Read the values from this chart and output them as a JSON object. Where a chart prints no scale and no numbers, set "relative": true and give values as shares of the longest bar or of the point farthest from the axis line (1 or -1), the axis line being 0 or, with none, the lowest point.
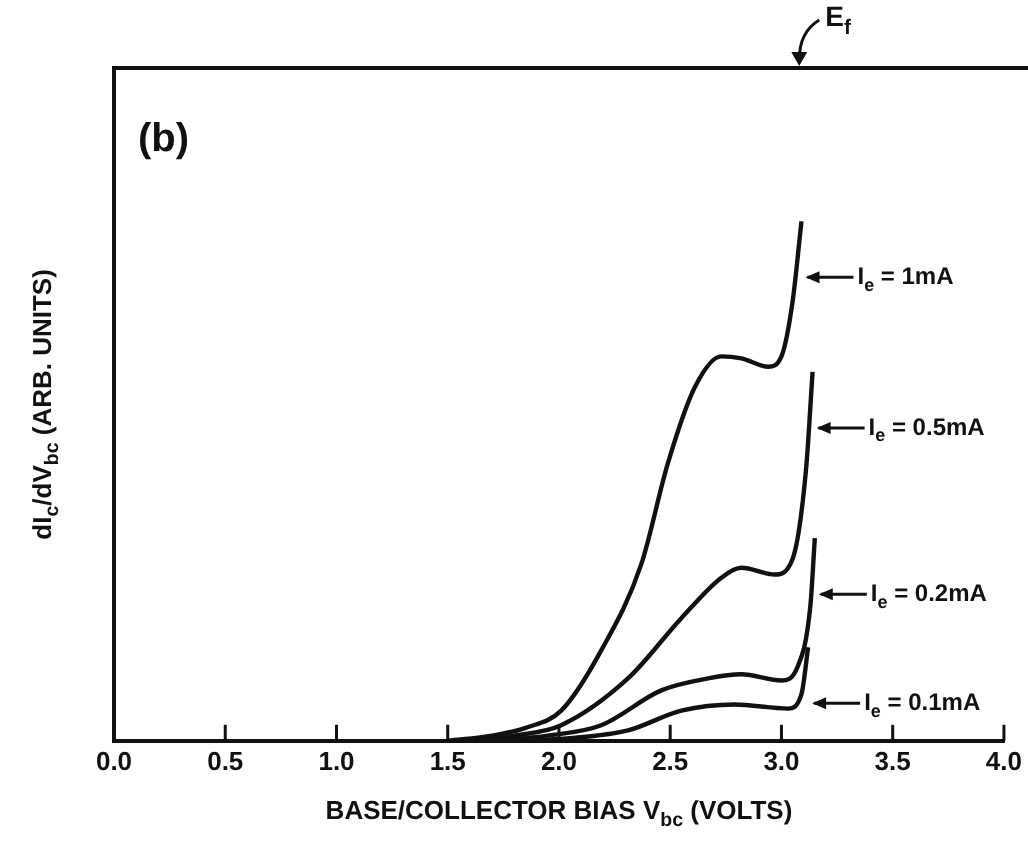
{
  "chart_data": {
    "type": "line",
    "relative": true,
    "xlabel": "BASE/COLLECTOR BIAS V$_{bc}$ (VOLTS)",
    "ylabel": "dI$_{c}$/dV$_{bc}$ (ARB. UNITS)",
    "xlim": [
      0,
      4
    ],
    "xticks": [
      {
        "value": 0,
        "label": "0.0"
      },
      0.5,
      {
        "value": 1,
        "label": "1.0"
      },
      1.5,
      {
        "value": 2,
        "label": "2.0"
      },
      2.5,
      {
        "value": 3,
        "label": "3.0"
      },
      3.5,
      {
        "value": 4,
        "label": "4.0"
      }
    ],
    "annotations": [
      "(b)",
      "E$_{f}$"
    ],
    "legend": "right",
    "series": [
      {
        "name": "I$_{e}$ = 1mA",
        "color": "#111111",
        "x": [
          1.5,
          1.7,
          1.85,
          2.01,
          2.19,
          2.37,
          2.49,
          2.61,
          2.73,
          2.82,
          2.94,
          3.0,
          3.05,
          3.09
        ],
        "values": [
          0,
          0.01,
          0.025,
          0.058,
          0.174,
          0.34,
          0.535,
          0.68,
          0.74,
          0.736,
          0.72,
          0.74,
          0.845,
          1
        ]
      },
      {
        "name": "I$_{e}$ = 0.5mA",
        "color": "#111111",
        "x": [
          1.6,
          1.8,
          2.01,
          2.31,
          2.55,
          2.73,
          2.82,
          2.97,
          3.05,
          3.11,
          3.14
        ],
        "values": [
          0,
          0.01,
          0.03,
          0.12,
          0.236,
          0.314,
          0.333,
          0.32,
          0.35,
          0.52,
          0.71
        ]
      },
      {
        "name": "I$_{e}$ = 0.2mA",
        "color": "#111111",
        "x": [
          1.7,
          1.95,
          2.19,
          2.46,
          2.67,
          2.82,
          3.0,
          3.07,
          3.13,
          3.15
        ],
        "values": [
          0,
          0.01,
          0.03,
          0.097,
          0.12,
          0.128,
          0.116,
          0.14,
          0.26,
          0.39
        ]
      },
      {
        "name": "I$_{e}$ = 0.1mA",
        "color": "#111111",
        "x": [
          1.8,
          2.05,
          2.31,
          2.55,
          2.79,
          3.03,
          3.09,
          3.12
        ],
        "values": [
          0,
          0.005,
          0.02,
          0.058,
          0.07,
          0.062,
          0.09,
          0.18
        ]
      }
    ]
  }
}
